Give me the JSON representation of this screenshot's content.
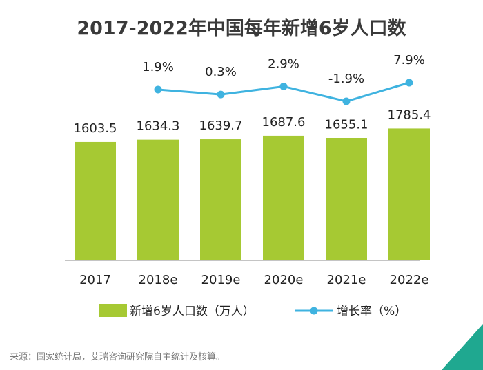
{
  "chart_data": {
    "type": "bar",
    "title": "2017-2022年中国每年新增6岁人口数",
    "categories": [
      "2017",
      "2018e",
      "2019e",
      "2020e",
      "2021e",
      "2022e"
    ],
    "series": [
      {
        "name": "新增6岁人口数（万人）",
        "type": "bar",
        "values": [
          1603.5,
          1634.3,
          1639.7,
          1687.6,
          1655.1,
          1785.4
        ],
        "labels": [
          "1603.5",
          "1634.3",
          "1639.7",
          "1687.6",
          "1655.1",
          "1785.4"
        ]
      },
      {
        "name": "增长率（%）",
        "type": "line",
        "values": [
          null,
          1.9,
          0.3,
          2.9,
          -1.9,
          7.9
        ],
        "labels": [
          "",
          "1.9%",
          "0.3%",
          "2.9%",
          "-1.9%",
          "7.9%"
        ]
      }
    ],
    "xlabel": "",
    "ylabel": "",
    "grid": false,
    "legend": "bottom",
    "source": "来源：国家统计局，艾瑞咨询研究院自主统计及核算。",
    "colors": {
      "bar": "#a6c933",
      "line": "#3fb3e0",
      "axis": "#8a8a8a",
      "corner": "#1fa890"
    }
  }
}
